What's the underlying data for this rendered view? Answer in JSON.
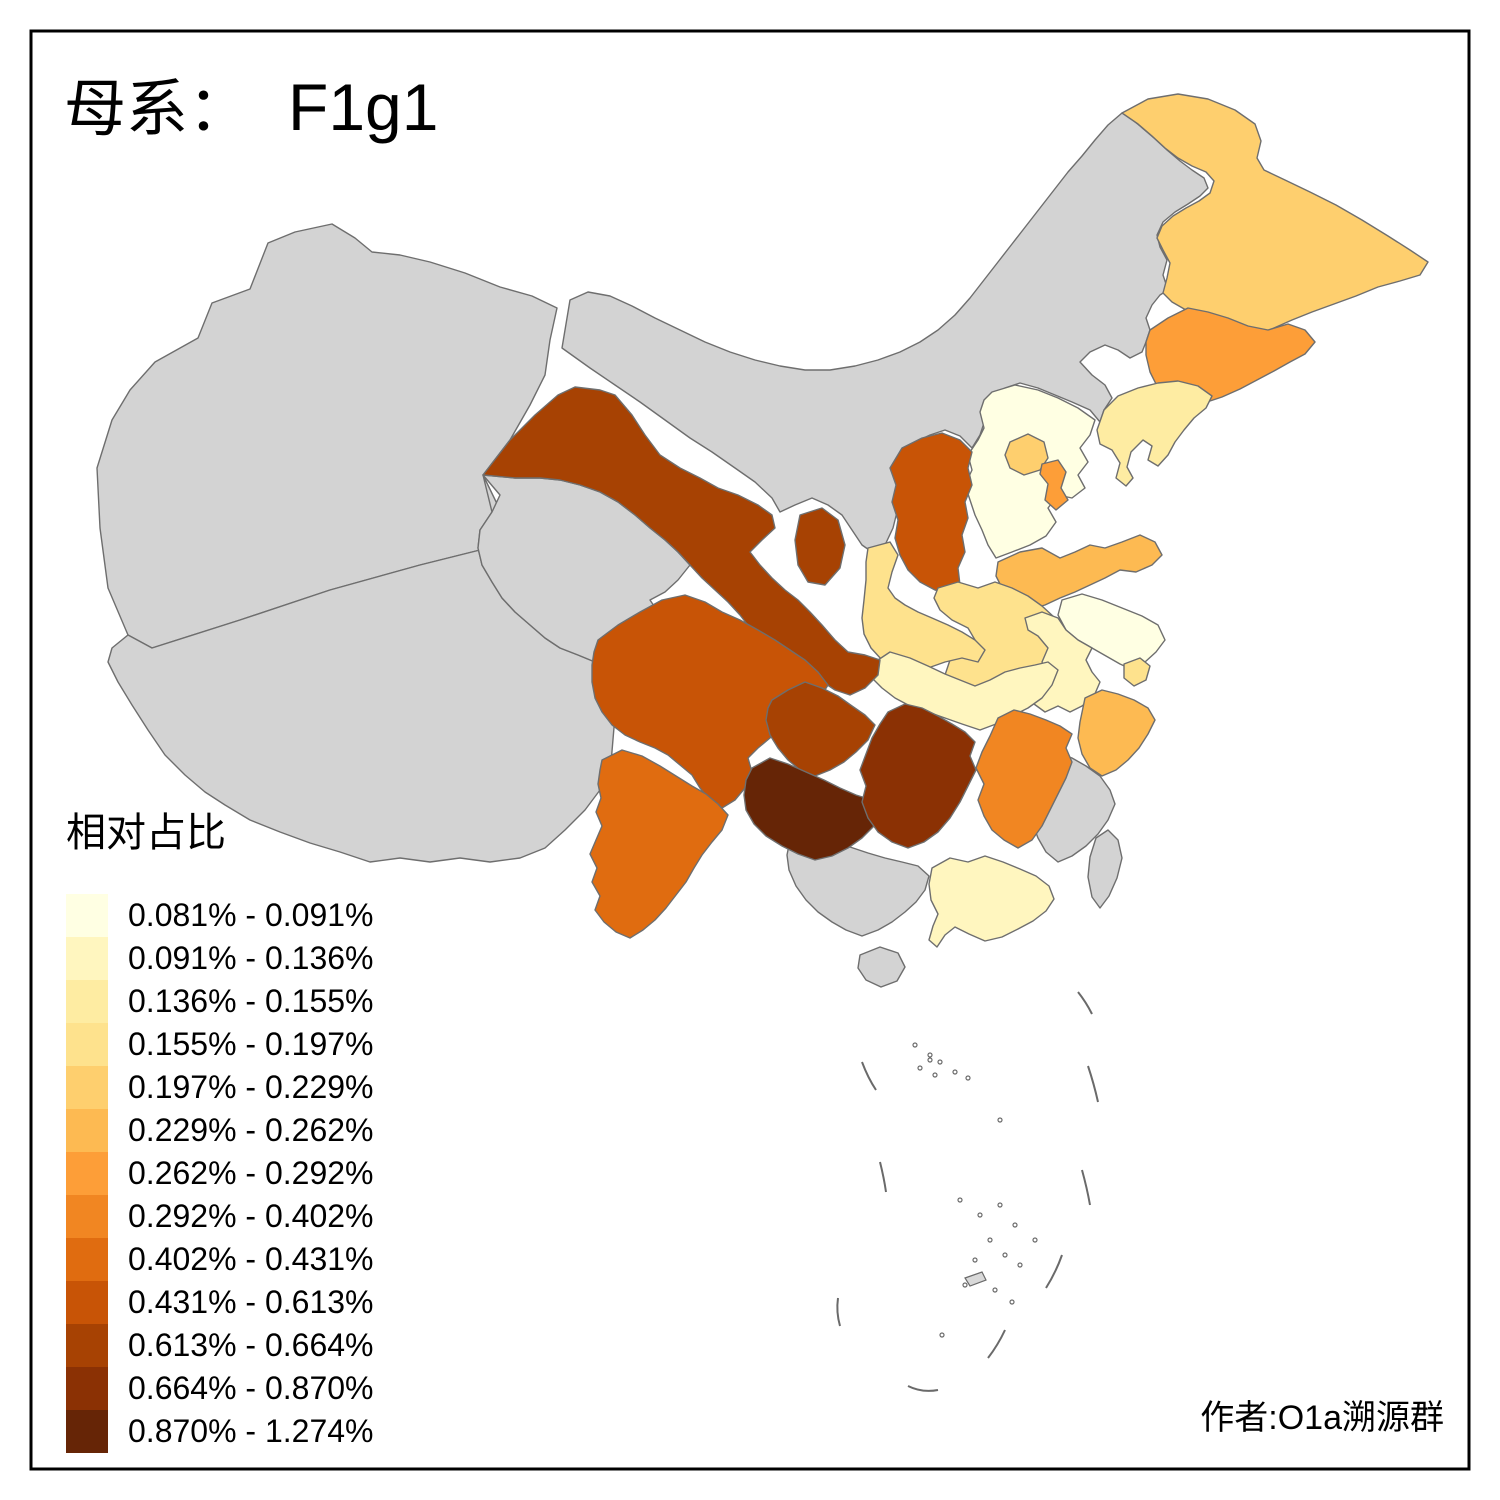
{
  "title": {
    "prefix": "母系：",
    "haplogroup": "F1g1"
  },
  "legend": {
    "title": "相对占比",
    "classes": [
      {
        "label": "0.081% - 0.091%",
        "color": "#FFFFE3"
      },
      {
        "label": "0.091% - 0.136%",
        "color": "#FFF6BF"
      },
      {
        "label": "0.136% - 0.155%",
        "color": "#FEECA2"
      },
      {
        "label": "0.155% - 0.197%",
        "color": "#FEE28D"
      },
      {
        "label": "0.197% - 0.229%",
        "color": "#FECF6E"
      },
      {
        "label": "0.229% - 0.262%",
        "color": "#FDBA52"
      },
      {
        "label": "0.262% - 0.292%",
        "color": "#FD9E38"
      },
      {
        "label": "0.292% - 0.402%",
        "color": "#F18622"
      },
      {
        "label": "0.402% - 0.431%",
        "color": "#E06C10"
      },
      {
        "label": "0.431% - 0.613%",
        "color": "#C85406"
      },
      {
        "label": "0.613% - 0.664%",
        "color": "#A74203"
      },
      {
        "label": "0.664% - 0.870%",
        "color": "#8B3104"
      },
      {
        "label": "0.870% - 1.274%",
        "color": "#662506"
      }
    ]
  },
  "author": "作者:O1a溯源群",
  "map": {
    "no_data_color": "#D3D3D3",
    "border_color": "#6E6E6E",
    "frame_color": "#000000",
    "provinces": [
      {
        "name": "Xinjiang",
        "class": null
      },
      {
        "name": "Tibet",
        "class": null
      },
      {
        "name": "Qinghai",
        "class": null
      },
      {
        "name": "InnerMongolia",
        "class": null
      },
      {
        "name": "Guangxi",
        "class": null
      },
      {
        "name": "Fujian",
        "class": null
      },
      {
        "name": "Hainan",
        "class": null
      },
      {
        "name": "Taiwan",
        "class": null
      },
      {
        "name": "Hebei",
        "class": 1
      },
      {
        "name": "Jiangsu",
        "class": 1
      },
      {
        "name": "Anhui",
        "class": 2
      },
      {
        "name": "Hubei",
        "class": 2
      },
      {
        "name": "Guangdong",
        "class": 2
      },
      {
        "name": "Liaoning",
        "class": 3
      },
      {
        "name": "Henan",
        "class": 4
      },
      {
        "name": "Shaanxi",
        "class": 4
      },
      {
        "name": "Shanghai",
        "class": 4
      },
      {
        "name": "Beijing",
        "class": 5
      },
      {
        "name": "Heilongjiang",
        "class": 5
      },
      {
        "name": "Shandong",
        "class": 6
      },
      {
        "name": "Zhejiang",
        "class": 6
      },
      {
        "name": "Tianjin",
        "class": 7
      },
      {
        "name": "Jilin",
        "class": 7
      },
      {
        "name": "Jiangxi",
        "class": 8
      },
      {
        "name": "Yunnan",
        "class": 9
      },
      {
        "name": "Shanxi",
        "class": 10
      },
      {
        "name": "Sichuan",
        "class": 10
      },
      {
        "name": "Gansu",
        "class": 11
      },
      {
        "name": "Ningxia",
        "class": 11
      },
      {
        "name": "Chongqing",
        "class": 11
      },
      {
        "name": "Hunan",
        "class": 12
      },
      {
        "name": "Guizhou",
        "class": 13
      }
    ]
  }
}
